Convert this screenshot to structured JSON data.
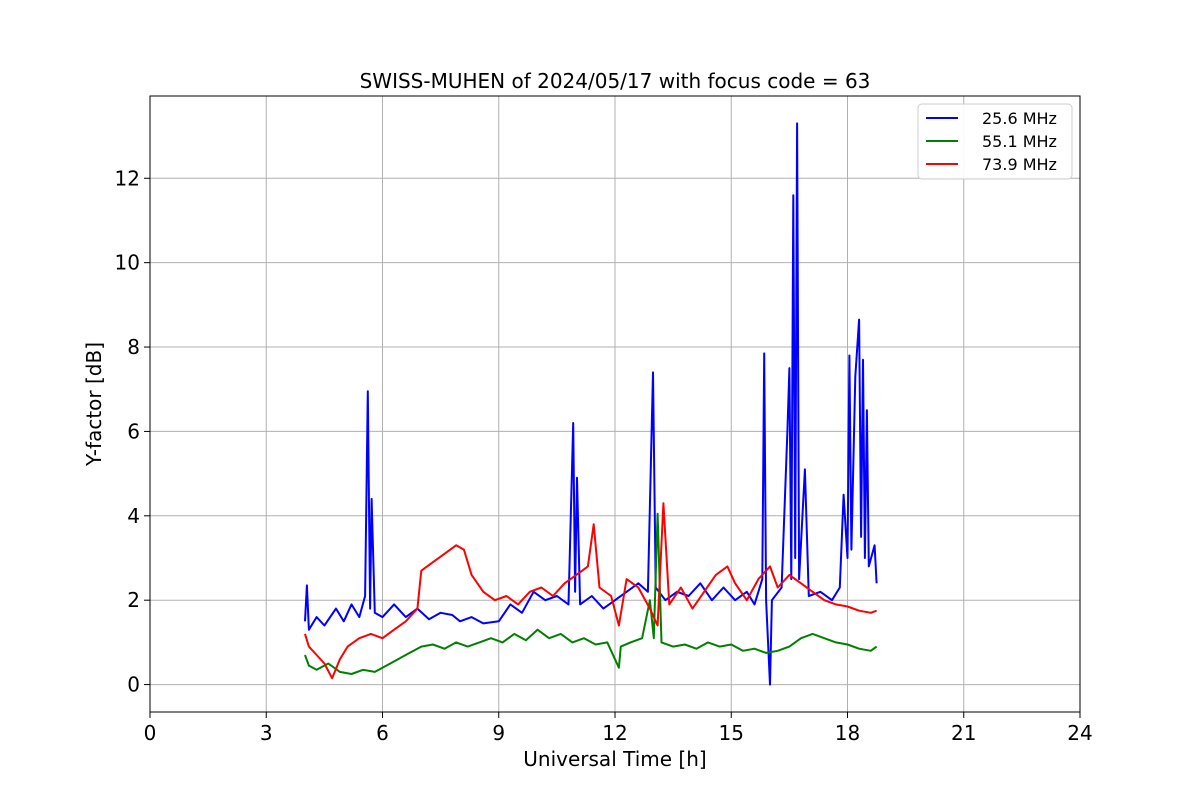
{
  "chart_data": {
    "type": "line",
    "title": "SWISS-MUHEN of 2024/05/17 with focus code = 63",
    "xlabel": "Universal Time [h]",
    "ylabel": "Y-factor [dB]",
    "xlim": [
      0,
      24
    ],
    "ylim": [
      -0.65,
      13.95
    ],
    "xticks": [
      0,
      3,
      6,
      9,
      12,
      15,
      18,
      21,
      24
    ],
    "yticks": [
      0,
      2,
      4,
      6,
      8,
      10,
      12
    ],
    "grid": true,
    "legend_position": "top-right",
    "series": [
      {
        "name": "25.6 MHz",
        "color": "#0000ff",
        "points": [
          [
            4.0,
            1.5
          ],
          [
            4.05,
            2.35
          ],
          [
            4.1,
            1.3
          ],
          [
            4.3,
            1.6
          ],
          [
            4.5,
            1.4
          ],
          [
            4.8,
            1.8
          ],
          [
            5.0,
            1.5
          ],
          [
            5.2,
            1.9
          ],
          [
            5.4,
            1.6
          ],
          [
            5.55,
            2.1
          ],
          [
            5.62,
            6.95
          ],
          [
            5.68,
            1.8
          ],
          [
            5.72,
            4.4
          ],
          [
            5.8,
            1.7
          ],
          [
            6.0,
            1.6
          ],
          [
            6.3,
            1.9
          ],
          [
            6.6,
            1.6
          ],
          [
            6.9,
            1.8
          ],
          [
            7.2,
            1.55
          ],
          [
            7.5,
            1.7
          ],
          [
            7.8,
            1.65
          ],
          [
            8.0,
            1.5
          ],
          [
            8.3,
            1.6
          ],
          [
            8.6,
            1.45
          ],
          [
            9.0,
            1.5
          ],
          [
            9.3,
            1.9
          ],
          [
            9.6,
            1.7
          ],
          [
            9.9,
            2.2
          ],
          [
            10.2,
            2.0
          ],
          [
            10.5,
            2.1
          ],
          [
            10.8,
            1.9
          ],
          [
            10.92,
            6.2
          ],
          [
            10.97,
            2.2
          ],
          [
            11.02,
            4.9
          ],
          [
            11.1,
            1.9
          ],
          [
            11.4,
            2.1
          ],
          [
            11.7,
            1.8
          ],
          [
            12.0,
            2.0
          ],
          [
            12.3,
            2.2
          ],
          [
            12.6,
            2.4
          ],
          [
            12.85,
            2.2
          ],
          [
            12.98,
            7.4
          ],
          [
            13.05,
            2.3
          ],
          [
            13.3,
            2.0
          ],
          [
            13.6,
            2.2
          ],
          [
            13.9,
            2.1
          ],
          [
            14.2,
            2.4
          ],
          [
            14.5,
            2.0
          ],
          [
            14.8,
            2.3
          ],
          [
            15.1,
            2.0
          ],
          [
            15.4,
            2.2
          ],
          [
            15.6,
            1.9
          ],
          [
            15.8,
            2.5
          ],
          [
            15.85,
            7.85
          ],
          [
            15.9,
            2.0
          ],
          [
            16.0,
            0.0
          ],
          [
            16.05,
            2.0
          ],
          [
            16.3,
            2.3
          ],
          [
            16.45,
            6.0
          ],
          [
            16.5,
            7.5
          ],
          [
            16.55,
            2.5
          ],
          [
            16.6,
            11.6
          ],
          [
            16.65,
            3.0
          ],
          [
            16.7,
            13.3
          ],
          [
            16.75,
            2.5
          ],
          [
            16.9,
            5.1
          ],
          [
            17.0,
            2.1
          ],
          [
            17.3,
            2.2
          ],
          [
            17.6,
            2.0
          ],
          [
            17.8,
            2.3
          ],
          [
            17.9,
            4.5
          ],
          [
            18.0,
            3.0
          ],
          [
            18.05,
            7.8
          ],
          [
            18.1,
            3.2
          ],
          [
            18.2,
            7.3
          ],
          [
            18.3,
            8.65
          ],
          [
            18.35,
            3.5
          ],
          [
            18.4,
            7.7
          ],
          [
            18.45,
            3.0
          ],
          [
            18.5,
            6.5
          ],
          [
            18.55,
            2.8
          ],
          [
            18.7,
            3.3
          ],
          [
            18.75,
            2.4
          ]
        ]
      },
      {
        "name": "55.1 MHz",
        "color": "#008000",
        "points": [
          [
            4.0,
            0.7
          ],
          [
            4.1,
            0.45
          ],
          [
            4.3,
            0.35
          ],
          [
            4.6,
            0.5
          ],
          [
            4.9,
            0.3
          ],
          [
            5.2,
            0.25
          ],
          [
            5.5,
            0.35
          ],
          [
            5.8,
            0.3
          ],
          [
            6.1,
            0.45
          ],
          [
            6.4,
            0.6
          ],
          [
            6.7,
            0.75
          ],
          [
            7.0,
            0.9
          ],
          [
            7.3,
            0.95
          ],
          [
            7.6,
            0.85
          ],
          [
            7.9,
            1.0
          ],
          [
            8.2,
            0.9
          ],
          [
            8.5,
            1.0
          ],
          [
            8.8,
            1.1
          ],
          [
            9.1,
            1.0
          ],
          [
            9.4,
            1.2
          ],
          [
            9.7,
            1.05
          ],
          [
            10.0,
            1.3
          ],
          [
            10.3,
            1.1
          ],
          [
            10.6,
            1.2
          ],
          [
            10.9,
            1.0
          ],
          [
            11.2,
            1.1
          ],
          [
            11.5,
            0.95
          ],
          [
            11.8,
            1.0
          ],
          [
            12.1,
            0.4
          ],
          [
            12.15,
            0.9
          ],
          [
            12.4,
            1.0
          ],
          [
            12.7,
            1.1
          ],
          [
            12.9,
            2.0
          ],
          [
            13.0,
            1.1
          ],
          [
            13.1,
            4.05
          ],
          [
            13.2,
            1.0
          ],
          [
            13.5,
            0.9
          ],
          [
            13.8,
            0.95
          ],
          [
            14.1,
            0.85
          ],
          [
            14.4,
            1.0
          ],
          [
            14.7,
            0.9
          ],
          [
            15.0,
            0.95
          ],
          [
            15.3,
            0.8
          ],
          [
            15.6,
            0.85
          ],
          [
            15.9,
            0.75
          ],
          [
            16.2,
            0.8
          ],
          [
            16.5,
            0.9
          ],
          [
            16.8,
            1.1
          ],
          [
            17.1,
            1.2
          ],
          [
            17.4,
            1.1
          ],
          [
            17.7,
            1.0
          ],
          [
            18.0,
            0.95
          ],
          [
            18.3,
            0.85
          ],
          [
            18.6,
            0.8
          ],
          [
            18.75,
            0.9
          ]
        ]
      },
      {
        "name": "73.9 MHz",
        "color": "#ff0000",
        "points": [
          [
            4.0,
            1.2
          ],
          [
            4.1,
            0.9
          ],
          [
            4.3,
            0.7
          ],
          [
            4.5,
            0.5
          ],
          [
            4.7,
            0.15
          ],
          [
            4.9,
            0.6
          ],
          [
            5.1,
            0.9
          ],
          [
            5.4,
            1.1
          ],
          [
            5.7,
            1.2
          ],
          [
            6.0,
            1.1
          ],
          [
            6.3,
            1.3
          ],
          [
            6.6,
            1.5
          ],
          [
            6.9,
            1.8
          ],
          [
            7.0,
            2.7
          ],
          [
            7.3,
            2.9
          ],
          [
            7.6,
            3.1
          ],
          [
            7.9,
            3.3
          ],
          [
            8.1,
            3.2
          ],
          [
            8.3,
            2.6
          ],
          [
            8.6,
            2.2
          ],
          [
            8.9,
            2.0
          ],
          [
            9.2,
            2.1
          ],
          [
            9.5,
            1.9
          ],
          [
            9.8,
            2.2
          ],
          [
            10.1,
            2.3
          ],
          [
            10.4,
            2.1
          ],
          [
            10.7,
            2.4
          ],
          [
            11.0,
            2.6
          ],
          [
            11.3,
            2.8
          ],
          [
            11.45,
            3.8
          ],
          [
            11.6,
            2.3
          ],
          [
            11.9,
            2.1
          ],
          [
            12.1,
            1.4
          ],
          [
            12.3,
            2.5
          ],
          [
            12.6,
            2.3
          ],
          [
            12.9,
            1.8
          ],
          [
            13.1,
            1.4
          ],
          [
            13.25,
            4.3
          ],
          [
            13.4,
            1.9
          ],
          [
            13.7,
            2.3
          ],
          [
            14.0,
            1.8
          ],
          [
            14.3,
            2.2
          ],
          [
            14.6,
            2.6
          ],
          [
            14.9,
            2.8
          ],
          [
            15.1,
            2.4
          ],
          [
            15.4,
            2.0
          ],
          [
            15.7,
            2.5
          ],
          [
            16.0,
            2.8
          ],
          [
            16.2,
            2.3
          ],
          [
            16.5,
            2.6
          ],
          [
            16.8,
            2.4
          ],
          [
            17.1,
            2.2
          ],
          [
            17.4,
            2.0
          ],
          [
            17.7,
            1.9
          ],
          [
            18.0,
            1.85
          ],
          [
            18.3,
            1.75
          ],
          [
            18.6,
            1.7
          ],
          [
            18.75,
            1.75
          ]
        ]
      }
    ]
  }
}
